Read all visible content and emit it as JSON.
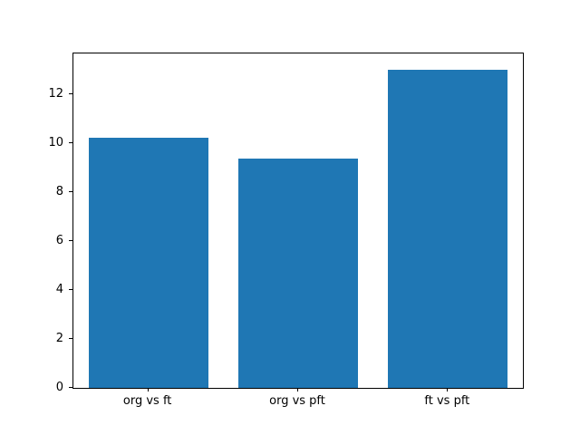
{
  "chart_data": {
    "type": "bar",
    "categories": [
      "org vs ft",
      "org vs pft",
      "ft vs pft"
    ],
    "values": [
      10.2,
      9.35,
      13.0
    ],
    "title": "",
    "xlabel": "",
    "ylabel": "",
    "ylim": [
      0,
      13.65
    ],
    "yticks": [
      0,
      2,
      4,
      6,
      8,
      10,
      12
    ],
    "bar_color": "#1f77b4",
    "bar_width_fraction": 0.8,
    "grid": false,
    "legend": null,
    "background": "#ffffff",
    "axis_color": "#000000"
  }
}
